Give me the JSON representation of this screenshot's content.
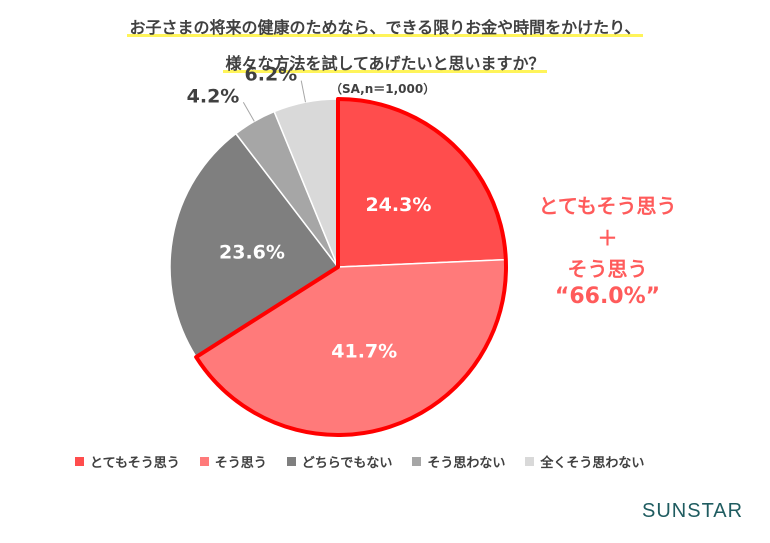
{
  "title_line1": "お子さまの将来の健康のためなら、できる限りお金や時間をかけたり、",
  "title_line2": "様々な方法を試してあげたいと思いますか？",
  "sample_note": "（SA,n＝1,000）",
  "chart_data": {
    "type": "pie",
    "start_angle_deg": 0,
    "direction": "clockwise",
    "slices": [
      {
        "label": "とてもそう思う",
        "value": 24.3,
        "display": "24.3%",
        "color": "#ff4d4d"
      },
      {
        "label": "そう思う",
        "value": 41.7,
        "display": "41.7%",
        "color": "#ff7a7a"
      },
      {
        "label": "どちらでもない",
        "value": 23.6,
        "display": "23.6%",
        "color": "#7f7f7f"
      },
      {
        "label": "そう思わない",
        "value": 4.2,
        "display": "4.2%",
        "color": "#a6a6a6"
      },
      {
        "label": "全くそう思わない",
        "value": 6.2,
        "display": "6.2%",
        "color": "#d9d9d9"
      }
    ],
    "highlight_color": "#ff0000"
  },
  "callout": {
    "line1": "とてもそう思う",
    "line2": "＋",
    "line3": "そう思う",
    "line4": "“66.0%”"
  },
  "brand": "SUNSTAR"
}
